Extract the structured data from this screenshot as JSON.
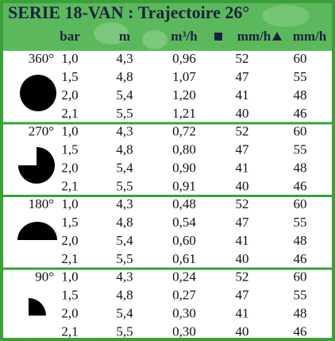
{
  "header": {
    "title": "SERIE 18-VAN : Trajectoire 26°",
    "columns": [
      "bar",
      "m",
      "m³/h",
      "mm/h",
      "mm/h"
    ]
  },
  "groups": [
    {
      "angle": "360°",
      "rows": [
        [
          "1,0",
          "4,3",
          "0,96",
          "52",
          "60"
        ],
        [
          "1,5",
          "4,8",
          "1,07",
          "47",
          "55"
        ],
        [
          "2,0",
          "5,4",
          "1,20",
          "41",
          "48"
        ],
        [
          "2,1",
          "5,5",
          "1,21",
          "40",
          "46"
        ]
      ]
    },
    {
      "angle": "270°",
      "rows": [
        [
          "1,0",
          "4,3",
          "0,72",
          "52",
          "60"
        ],
        [
          "1,5",
          "4,8",
          "0,80",
          "47",
          "55"
        ],
        [
          "2,0",
          "5,4",
          "0,90",
          "41",
          "48"
        ],
        [
          "2,1",
          "5,5",
          "0,91",
          "40",
          "46"
        ]
      ]
    },
    {
      "angle": "180°",
      "rows": [
        [
          "1,0",
          "4,3",
          "0,48",
          "52",
          "60"
        ],
        [
          "1,5",
          "4,8",
          "0,54",
          "47",
          "55"
        ],
        [
          "2,0",
          "5,4",
          "0,60",
          "41",
          "48"
        ],
        [
          "2,1",
          "5,5",
          "0,61",
          "40",
          "46"
        ]
      ]
    },
    {
      "angle": "90°",
      "rows": [
        [
          "1,0",
          "4,3",
          "0,24",
          "52",
          "60"
        ],
        [
          "1,5",
          "4,8",
          "0,27",
          "47",
          "55"
        ],
        [
          "2,0",
          "5,4",
          "0,30",
          "41",
          "48"
        ],
        [
          "2,1",
          "5,5",
          "0,30",
          "40",
          "46"
        ]
      ]
    }
  ]
}
